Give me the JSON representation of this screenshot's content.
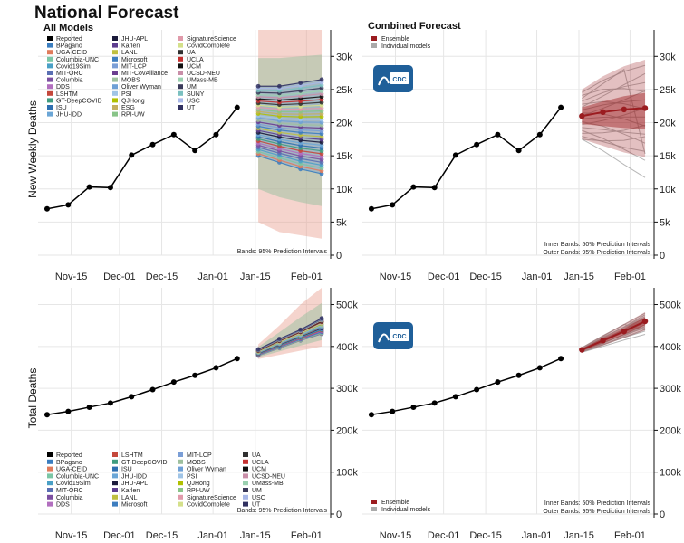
{
  "page": {
    "title": "National Forecast",
    "colors": {
      "reported": "#000000",
      "ensemble": "#9b1c20",
      "individual": "#aaaaaa",
      "grid": "#e6e6e6",
      "cdc_blue": "#1f5f99"
    }
  },
  "badge": {
    "text": "CDC"
  },
  "chart_data": [
    {
      "id": "weekly-all",
      "type": "line",
      "title": "All Models",
      "ylabel": "New Weekly Deaths",
      "x_ticks": [
        "Nov-15",
        "Dec-01",
        "Dec-15",
        "Jan-01",
        "Jan-15",
        "Feb-01"
      ],
      "y_ticks": [
        "0",
        "5k",
        "10k",
        "15k",
        "20k",
        "25k",
        "30k"
      ],
      "ylim": [
        0,
        34000
      ],
      "note": "Bands: 95% Prediction Intervals",
      "reported": [
        {
          "x": "2020-11-07",
          "y": 7000
        },
        {
          "x": "2020-11-14",
          "y": 7600
        },
        {
          "x": "2020-11-21",
          "y": 10300
        },
        {
          "x": "2020-11-28",
          "y": 10200
        },
        {
          "x": "2020-12-05",
          "y": 15100
        },
        {
          "x": "2020-12-12",
          "y": 16700
        },
        {
          "x": "2020-12-19",
          "y": 18200
        },
        {
          "x": "2020-12-26",
          "y": 15800
        },
        {
          "x": "2021-01-02",
          "y": 18200
        },
        {
          "x": "2021-01-09",
          "y": 22300
        }
      ],
      "forecast_dates": [
        "2021-01-16",
        "2021-01-23",
        "2021-01-30",
        "2021-02-06"
      ],
      "forecast_low": [
        15000,
        14000,
        13000,
        12300
      ],
      "forecast_high": [
        25500,
        25500,
        26000,
        26500
      ],
      "band_low": [
        5000,
        3500,
        3000,
        2500
      ],
      "band_high": [
        34000,
        34000,
        34000,
        34000
      ],
      "legend": [
        "Reported",
        "BPagano",
        "UGA-CEID",
        "Columbia-UNC",
        "Covid19Sim",
        "MIT-ORC",
        "Columbia",
        "DDS",
        "LSHTM",
        "GT-DeepCOVID",
        "ISU",
        "JHU-IDD",
        "JHU-APL",
        "Karlen",
        "LANL",
        "Microsoft",
        "MIT-LCP",
        "MIT-CovAlliance",
        "MOBS",
        "Oliver Wyman",
        "PSI",
        "QJHong",
        "ESG",
        "RPI-UW",
        "SignatureScience",
        "CovidComplete",
        "UA",
        "UCLA",
        "UCM",
        "UCSD-NEU",
        "UMass-MB",
        "UM",
        "SUNY",
        "USC",
        "UT"
      ],
      "legend_colors": [
        "#000000",
        "#3a7dbf",
        "#e07b5b",
        "#7bc6a5",
        "#4aa0c6",
        "#5a6fb3",
        "#7c4fa1",
        "#b26fbf",
        "#c4473b",
        "#3f9c7f",
        "#2e6fb0",
        "#6ba6d6",
        "#1a1a3a",
        "#5d3d8f",
        "#bfbf3f",
        "#3d7dbf",
        "#7a9ed6",
        "#6a3d8f",
        "#9ec09e",
        "#6fa0d6",
        "#a0c4e6",
        "#b0c000",
        "#c4b060",
        "#88c488",
        "#e09aaa",
        "#d4e08a",
        "#303030",
        "#c43030",
        "#101010",
        "#c98ea8",
        "#9ad0b0",
        "#3a3a5a",
        "#7bc0c0",
        "#a8b8e8",
        "#303060"
      ]
    },
    {
      "id": "weekly-combined",
      "type": "line",
      "title": "Combined Forecast",
      "ylabel": "",
      "x_ticks": [
        "Nov-15",
        "Dec-01",
        "Dec-15",
        "Jan-01",
        "Jan-15",
        "Feb-01"
      ],
      "y_ticks": [
        "0",
        "5k",
        "10k",
        "15k",
        "20k",
        "25k",
        "30k"
      ],
      "ylim": [
        0,
        34000
      ],
      "note_1": "Inner Bands: 50% Prediction Intervals",
      "note_2": "Outer Bands: 95% Prediction Intervals",
      "legend": [
        "Ensemble",
        "Individual models"
      ],
      "reported": [
        {
          "x": "2020-11-07",
          "y": 7000
        },
        {
          "x": "2020-11-14",
          "y": 7600
        },
        {
          "x": "2020-11-21",
          "y": 10300
        },
        {
          "x": "2020-11-28",
          "y": 10200
        },
        {
          "x": "2020-12-05",
          "y": 15100
        },
        {
          "x": "2020-12-12",
          "y": 16700
        },
        {
          "x": "2020-12-19",
          "y": 18200
        },
        {
          "x": "2020-12-26",
          "y": 15800
        },
        {
          "x": "2021-01-02",
          "y": 18200
        },
        {
          "x": "2021-01-09",
          "y": 22300
        }
      ],
      "ensemble": [
        {
          "x": "2021-01-16",
          "y": 21000
        },
        {
          "x": "2021-01-23",
          "y": 21600
        },
        {
          "x": "2021-01-30",
          "y": 22000
        },
        {
          "x": "2021-02-06",
          "y": 22200
        }
      ],
      "inner_low": [
        19800,
        19500,
        19200,
        19000
      ],
      "inner_high": [
        22300,
        23200,
        24000,
        24500
      ],
      "outer_low": [
        17500,
        16500,
        15500,
        14800
      ],
      "outer_high": [
        25000,
        27000,
        28500,
        29500
      ]
    },
    {
      "id": "total-all",
      "type": "line",
      "ylabel": "Total Deaths",
      "x_ticks": [
        "Nov-15",
        "Dec-01",
        "Dec-15",
        "Jan-01",
        "Jan-15",
        "Feb-01"
      ],
      "y_ticks": [
        "0",
        "100k",
        "200k",
        "300k",
        "400k",
        "500k"
      ],
      "ylim": [
        0,
        540000
      ],
      "note": "Bands: 95% Prediction Intervals",
      "reported": [
        {
          "x": "2020-11-07",
          "y": 237000
        },
        {
          "x": "2020-11-14",
          "y": 245000
        },
        {
          "x": "2020-11-21",
          "y": 255000
        },
        {
          "x": "2020-11-28",
          "y": 265000
        },
        {
          "x": "2020-12-05",
          "y": 280000
        },
        {
          "x": "2020-12-12",
          "y": 297000
        },
        {
          "x": "2020-12-19",
          "y": 315000
        },
        {
          "x": "2020-12-26",
          "y": 331000
        },
        {
          "x": "2021-01-02",
          "y": 349000
        },
        {
          "x": "2021-01-09",
          "y": 371000
        }
      ],
      "forecast_low": [
        378000,
        396000,
        414000,
        430000
      ],
      "forecast_high": [
        393000,
        418000,
        440000,
        467000
      ],
      "band_low": [
        370000,
        380000,
        390000,
        400000
      ],
      "band_high": [
        405000,
        450000,
        500000,
        540000
      ],
      "legend": [
        "Reported",
        "BPagano",
        "UGA-CEID",
        "Columbia-UNC",
        "Covid19Sim",
        "MIT-ORC",
        "Columbia",
        "DDS",
        "LSHTM",
        "GT-DeepCOVID",
        "ISU",
        "JHU-IDD",
        "JHU-APL",
        "Karlen",
        "LANL",
        "Microsoft",
        "MIT-LCP",
        "MOBS",
        "Oliver Wyman",
        "PSI",
        "QJHong",
        "RPI-UW",
        "SignatureScience",
        "CovidComplete",
        "UA",
        "UCLA",
        "UCM",
        "UCSD-NEU",
        "UMass-MB",
        "UM",
        "USC",
        "UT"
      ],
      "legend_colors": [
        "#000000",
        "#3a7dbf",
        "#e07b5b",
        "#7bc6a5",
        "#4aa0c6",
        "#5a6fb3",
        "#7c4fa1",
        "#b26fbf",
        "#c4473b",
        "#3f9c7f",
        "#2e6fb0",
        "#6ba6d6",
        "#1a1a3a",
        "#5d3d8f",
        "#bfbf3f",
        "#3d7dbf",
        "#7a9ed6",
        "#9ec09e",
        "#6fa0d6",
        "#a0c4e6",
        "#b0c000",
        "#88c488",
        "#e09aaa",
        "#d4e08a",
        "#303030",
        "#c43030",
        "#101010",
        "#c98ea8",
        "#9ad0b0",
        "#3a3a5a",
        "#a8b8e8",
        "#303060"
      ]
    },
    {
      "id": "total-combined",
      "type": "line",
      "ylabel": "",
      "x_ticks": [
        "Nov-15",
        "Dec-01",
        "Dec-15",
        "Jan-01",
        "Jan-15",
        "Feb-01"
      ],
      "y_ticks": [
        "0",
        "100k",
        "200k",
        "300k",
        "400k",
        "500k"
      ],
      "ylim": [
        0,
        540000
      ],
      "note_1": "Inner Bands: 50% Prediction Intervals",
      "note_2": "Outer Bands: 95% Prediction Intervals",
      "legend": [
        "Ensemble",
        "Individual models"
      ],
      "reported": [
        {
          "x": "2020-11-07",
          "y": 237000
        },
        {
          "x": "2020-11-14",
          "y": 245000
        },
        {
          "x": "2020-11-21",
          "y": 255000
        },
        {
          "x": "2020-11-28",
          "y": 265000
        },
        {
          "x": "2020-12-05",
          "y": 280000
        },
        {
          "x": "2020-12-12",
          "y": 297000
        },
        {
          "x": "2020-12-19",
          "y": 315000
        },
        {
          "x": "2020-12-26",
          "y": 331000
        },
        {
          "x": "2021-01-02",
          "y": 349000
        },
        {
          "x": "2021-01-09",
          "y": 371000
        }
      ],
      "ensemble": [
        {
          "x": "2021-01-16",
          "y": 392000
        },
        {
          "x": "2021-01-23",
          "y": 414000
        },
        {
          "x": "2021-01-30",
          "y": 436000
        },
        {
          "x": "2021-02-06",
          "y": 460000
        }
      ],
      "inner_low": [
        389000,
        408000,
        428000,
        450000
      ],
      "inner_high": [
        395000,
        420000,
        444000,
        470000
      ],
      "outer_low": [
        386000,
        402000,
        420000,
        438000
      ],
      "outer_high": [
        398000,
        427000,
        454000,
        482000
      ]
    }
  ]
}
